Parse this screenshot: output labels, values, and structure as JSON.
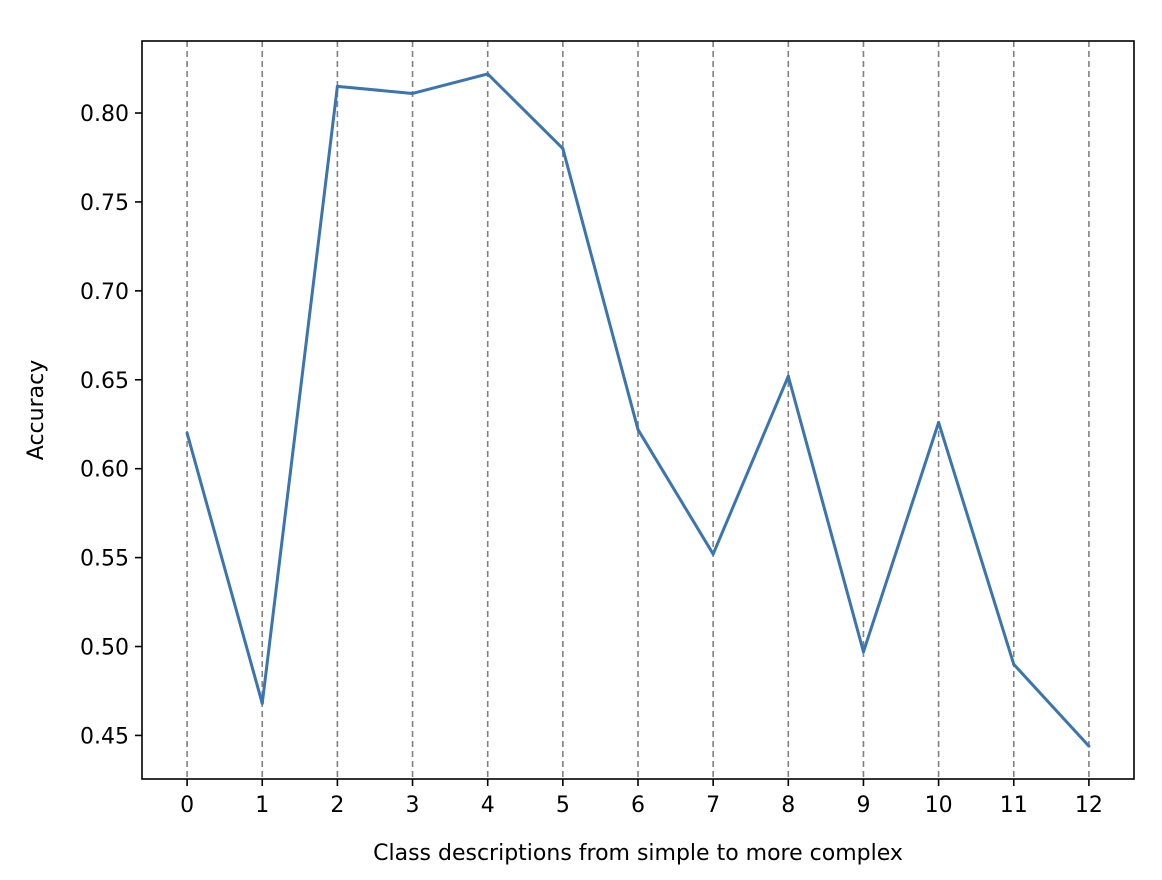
{
  "chart_data": {
    "type": "line",
    "xlabel": "Class descriptions from simple to more complex",
    "ylabel": "Accuracy",
    "x": [
      0,
      1,
      2,
      3,
      4,
      5,
      6,
      7,
      8,
      9,
      10,
      11,
      12
    ],
    "x_tick_labels": [
      "0",
      "1",
      "2",
      "3",
      "4",
      "5",
      "6",
      "7",
      "8",
      "9",
      "10",
      "11",
      "12"
    ],
    "y_ticks": [
      0.45,
      0.5,
      0.55,
      0.6,
      0.65,
      0.7,
      0.75,
      0.8
    ],
    "y_tick_labels": [
      "0.45",
      "0.50",
      "0.55",
      "0.60",
      "0.65",
      "0.70",
      "0.75",
      "0.80"
    ],
    "xlim": [
      -0.6,
      12.6
    ],
    "ylim": [
      0.4255,
      0.8405
    ],
    "series": [
      {
        "values": [
          0.62,
          0.468,
          0.815,
          0.811,
          0.822,
          0.78,
          0.622,
          0.552,
          0.652,
          0.497,
          0.626,
          0.49,
          0.444
        ],
        "color": "#3a75b0"
      }
    ],
    "grid": "vertical dashed lines at each x tick",
    "grid_color": "#808080",
    "legend": "none"
  }
}
